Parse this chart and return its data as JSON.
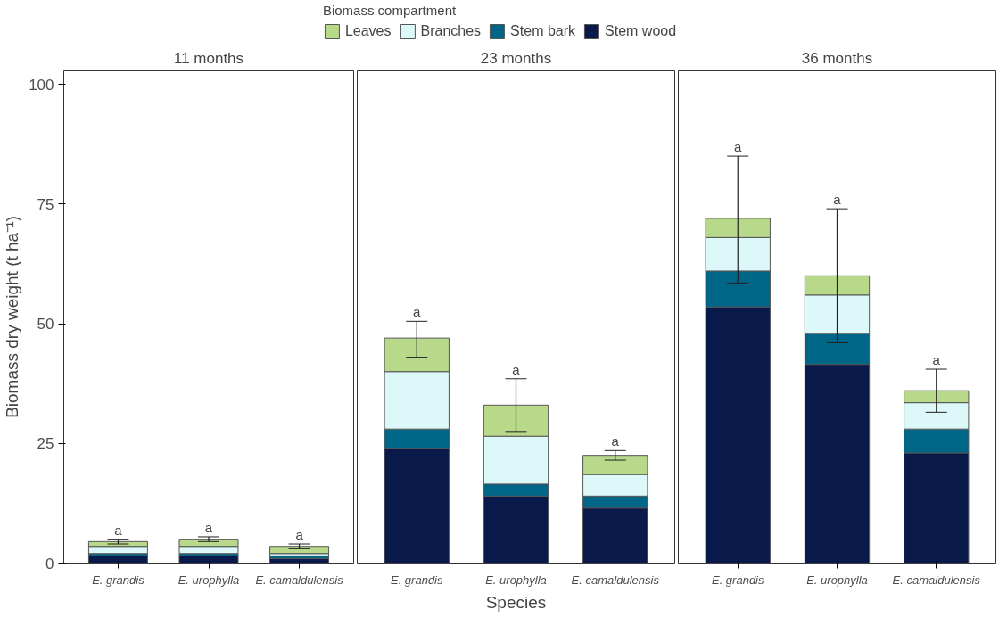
{
  "chart_data": [
    {
      "type": "bar",
      "title": "11 months",
      "ylabel": "Biomass dry weight (t ha⁻¹)",
      "categories": [
        "E. grandis",
        "E. urophylla",
        "E. camaldulensis"
      ],
      "stacked": true,
      "ylim": [
        0,
        102.8
      ],
      "yticks": [
        0,
        25,
        50,
        75,
        100
      ],
      "grid": false,
      "series": [
        {
          "color": "#08194a",
          "values": [
            1.5,
            1.5,
            1
          ]
        },
        {
          "color": "#006688",
          "values": [
            0.5,
            0.5,
            0.5
          ]
        },
        {
          "color": "#dcf8f8",
          "values": [
            1.5,
            1.5,
            0.5
          ]
        },
        {
          "color": "#b8d98a",
          "values": [
            1,
            1.5,
            1.5
          ],
          "errors": [
            [
              4,
              5
            ],
            [
              4.5,
              5.5
            ],
            [
              3,
              4
            ]
          ]
        }
      ],
      "annotations": [
        {
          "text": "a",
          "x": "E. grandis",
          "y": 5
        },
        {
          "text": "a",
          "x": "E. urophylla",
          "y": 5.5
        },
        {
          "text": "a",
          "x": "E. camaldulensis",
          "y": 4
        }
      ]
    },
    {
      "type": "bar",
      "title": "23 months",
      "xlabel": "Species",
      "legend_title": "Biomass compartment",
      "legend": "top",
      "tick_labels": "x",
      "categories": [
        "E. grandis",
        "E. urophylla",
        "E. camaldulensis"
      ],
      "stacked": true,
      "ylim": [
        0,
        102.8
      ],
      "yticks": [
        0,
        25,
        50,
        75,
        100
      ],
      "grid": false,
      "series": [
        {
          "name": "Stem wood",
          "color": "#08194a",
          "values": [
            24,
            14,
            11.5
          ]
        },
        {
          "name": "Stem bark",
          "color": "#006688",
          "values": [
            4,
            2.5,
            2.5
          ]
        },
        {
          "name": "Branches",
          "color": "#dcf8f8",
          "values": [
            12,
            10,
            4.5
          ]
        },
        {
          "name": "Leaves",
          "color": "#b8d98a",
          "values": [
            7,
            6.5,
            4
          ],
          "errors": [
            [
              43,
              50.5
            ],
            [
              27.5,
              38.5
            ],
            [
              21.5,
              23.5
            ]
          ]
        }
      ],
      "annotations": [
        {
          "text": "a",
          "x": "E. grandis",
          "y": 50.5
        },
        {
          "text": "a",
          "x": "E. urophylla",
          "y": 38.5
        },
        {
          "text": "a",
          "x": "E. camaldulensis",
          "y": 23.5
        }
      ]
    },
    {
      "type": "bar",
      "title": "36 months",
      "tick_labels": "x",
      "categories": [
        "E. grandis",
        "E. urophylla",
        "E. camaldulensis"
      ],
      "stacked": true,
      "ylim": [
        0,
        102.8
      ],
      "yticks": [
        0,
        25,
        50,
        75,
        100
      ],
      "grid": false,
      "series": [
        {
          "color": "#08194a",
          "values": [
            53.5,
            41.5,
            23
          ]
        },
        {
          "color": "#006688",
          "values": [
            7.5,
            6.5,
            5
          ]
        },
        {
          "color": "#dcf8f8",
          "values": [
            7,
            8,
            5.5
          ]
        },
        {
          "color": "#b8d98a",
          "values": [
            4,
            4,
            2.5
          ],
          "errors": [
            [
              58.5,
              85
            ],
            [
              46,
              74
            ],
            [
              31.5,
              40.5
            ]
          ]
        }
      ],
      "annotations": [
        {
          "text": "a",
          "x": "E. grandis",
          "y": 85
        },
        {
          "text": "a",
          "x": "E. urophylla",
          "y": 74
        },
        {
          "text": "a",
          "x": "E. camaldulensis",
          "y": 40.5
        }
      ]
    }
  ]
}
